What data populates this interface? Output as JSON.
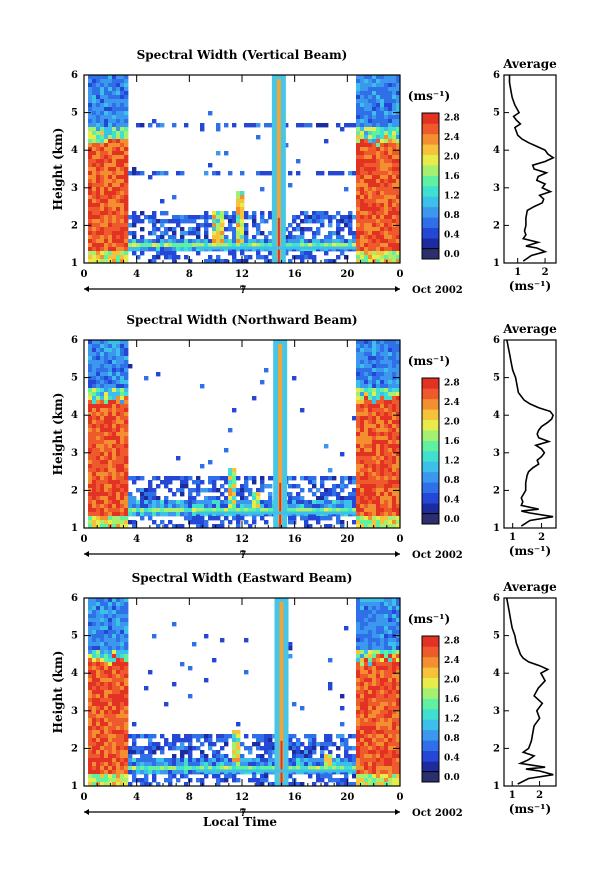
{
  "footer": {
    "local_time_label": "Local Time"
  },
  "chart_data": [
    {
      "type": "heatmap",
      "title": "Spectral Width (Vertical Beam)",
      "ylabel": "Height (km)",
      "xlabel": "",
      "x_ticks": [
        "0",
        "4",
        "8",
        "12",
        "16",
        "20",
        "0"
      ],
      "x_range": [
        0,
        24
      ],
      "y_ticks": [
        "1",
        "2",
        "3",
        "4",
        "5",
        "6"
      ],
      "ylim": [
        1,
        6
      ],
      "date_axis": {
        "day": "7",
        "month_year": "Oct 2002"
      },
      "colorbar": {
        "unit": "(ms⁻¹)",
        "ticks": [
          "0.0",
          "0.4",
          "0.8",
          "1.2",
          "1.6",
          "2.0",
          "2.4",
          "2.8"
        ],
        "range": [
          0,
          3.0
        ],
        "colors": [
          "#2b2f6e",
          "#1c2c9e",
          "#2547d6",
          "#2f6fe8",
          "#3c97ee",
          "#3cc0ea",
          "#40dfd0",
          "#5ff0a0",
          "#a5f070",
          "#e8ec4a",
          "#f5c23a",
          "#f38f30",
          "#ee5a2c",
          "#e23224"
        ]
      },
      "structure": {
        "boundary_layer_top_km": 4.3,
        "boundary_layer_start_h": 0.3,
        "morning_end_h": 3.4,
        "evening_start_h": 20.7,
        "spike_h": 14.8,
        "low_band_km": [
          1.3,
          1.65
        ],
        "cloud_layers_km": [
          4.7,
          3.4,
          2.2
        ],
        "convective_bursts": [
          {
            "x": 11.8,
            "top": 2.9
          },
          {
            "x": 10.2,
            "top": 2.4
          }
        ]
      },
      "average_panel": {
        "title": "Average",
        "xlabel": "(ms⁻¹)",
        "x_ticks": [
          "1",
          "2"
        ],
        "xlim": [
          0.5,
          2.4
        ],
        "y_ticks": [
          "1",
          "2",
          "3",
          "4",
          "5",
          "6"
        ],
        "ylim": [
          1,
          6
        ],
        "profile": {
          "height_km": [
            1.05,
            1.2,
            1.3,
            1.4,
            1.45,
            1.55,
            1.65,
            1.75,
            1.85,
            2.0,
            2.2,
            2.4,
            2.5,
            2.6,
            2.7,
            2.8,
            2.9,
            3.0,
            3.1,
            3.2,
            3.3,
            3.4,
            3.5,
            3.6,
            3.7,
            3.8,
            3.9,
            4.0,
            4.1,
            4.2,
            4.3,
            4.4,
            4.5,
            4.6,
            4.7,
            4.8,
            4.9,
            5.0,
            5.2,
            5.4,
            5.6,
            5.8,
            6.0
          ],
          "width_ms": [
            1.2,
            1.5,
            2.0,
            1.7,
            1.3,
            1.75,
            1.2,
            1.3,
            1.25,
            1.3,
            1.3,
            1.35,
            1.6,
            1.9,
            1.95,
            1.8,
            2.2,
            1.9,
            2.0,
            1.7,
            1.75,
            2.05,
            1.6,
            1.55,
            2.0,
            2.3,
            2.1,
            2.0,
            1.7,
            1.4,
            1.15,
            1.0,
            0.95,
            0.9,
            1.1,
            0.95,
            0.85,
            1.05,
            0.9,
            0.8,
            0.75,
            0.7,
            0.7
          ]
        }
      }
    },
    {
      "type": "heatmap",
      "title": "Spectral Width (Northward Beam)",
      "ylabel": "Height (km)",
      "xlabel": "",
      "x_ticks": [
        "0",
        "4",
        "8",
        "12",
        "16",
        "20",
        "0"
      ],
      "x_range": [
        0,
        24
      ],
      "y_ticks": [
        "1",
        "2",
        "3",
        "4",
        "5",
        "6"
      ],
      "ylim": [
        1,
        6
      ],
      "date_axis": {
        "day": "7",
        "month_year": "Oct 2002"
      },
      "colorbar": {
        "unit": "(ms⁻¹)",
        "ticks": [
          "0.0",
          "0.4",
          "0.8",
          "1.2",
          "1.6",
          "2.0",
          "2.4",
          "2.8"
        ],
        "range": [
          0,
          3.0
        ],
        "colors": [
          "#2b2f6e",
          "#1c2c9e",
          "#2547d6",
          "#2f6fe8",
          "#3c97ee",
          "#3cc0ea",
          "#40dfd0",
          "#5ff0a0",
          "#a5f070",
          "#e8ec4a",
          "#f5c23a",
          "#f38f30",
          "#ee5a2c",
          "#e23224"
        ]
      },
      "structure": {
        "boundary_layer_top_km": 4.45,
        "boundary_layer_start_h": 0.3,
        "morning_end_h": 3.4,
        "evening_start_h": 20.7,
        "spike_h": 14.9,
        "low_band_km": [
          1.3,
          1.7
        ],
        "cloud_layers_km": [
          2.3
        ],
        "convective_bursts": [
          {
            "x": 11.3,
            "top": 2.6
          },
          {
            "x": 13.0,
            "top": 2.0
          }
        ]
      },
      "average_panel": {
        "title": "Average",
        "xlabel": "(ms⁻¹)",
        "x_ticks": [
          "1",
          "2"
        ],
        "xlim": [
          0.7,
          2.5
        ],
        "y_ticks": [
          "1",
          "2",
          "3",
          "4",
          "5",
          "6"
        ],
        "ylim": [
          1,
          6
        ],
        "profile": {
          "height_km": [
            1.05,
            1.2,
            1.3,
            1.4,
            1.45,
            1.5,
            1.6,
            1.7,
            1.8,
            2.0,
            2.2,
            2.4,
            2.5,
            2.6,
            2.7,
            2.8,
            2.9,
            3.0,
            3.1,
            3.2,
            3.3,
            3.4,
            3.5,
            3.6,
            3.7,
            3.8,
            3.9,
            4.0,
            4.1,
            4.2,
            4.3,
            4.4,
            4.5,
            4.6,
            4.8,
            5.0,
            5.2,
            5.4,
            5.6,
            5.8,
            6.0
          ],
          "width_ms": [
            1.3,
            1.6,
            2.4,
            1.6,
            1.3,
            1.9,
            1.3,
            1.35,
            1.3,
            1.45,
            1.45,
            1.5,
            1.55,
            1.7,
            1.9,
            1.85,
            2.0,
            2.1,
            2.0,
            1.8,
            2.25,
            1.9,
            1.85,
            1.9,
            2.0,
            2.2,
            2.35,
            2.4,
            2.3,
            1.9,
            1.6,
            1.4,
            1.3,
            1.2,
            1.15,
            1.1,
            1.0,
            0.95,
            0.9,
            0.85,
            0.8
          ]
        }
      }
    },
    {
      "type": "heatmap",
      "title": "Spectral Width (Eastward Beam)",
      "ylabel": "Height (km)",
      "xlabel": "Local Time",
      "x_ticks": [
        "0",
        "4",
        "8",
        "12",
        "16",
        "20",
        "0"
      ],
      "x_range": [
        0,
        24
      ],
      "y_ticks": [
        "1",
        "2",
        "3",
        "4",
        "5",
        "6"
      ],
      "ylim": [
        1,
        6
      ],
      "date_axis": {
        "day": "7",
        "month_year": "Oct 2002"
      },
      "colorbar": {
        "unit": "(ms⁻¹)",
        "ticks": [
          "0.0",
          "0.4",
          "0.8",
          "1.2",
          "1.6",
          "2.0",
          "2.4",
          "2.8"
        ],
        "range": [
          0,
          3.0
        ],
        "colors": [
          "#2b2f6e",
          "#1c2c9e",
          "#2547d6",
          "#2f6fe8",
          "#3c97ee",
          "#3cc0ea",
          "#40dfd0",
          "#5ff0a0",
          "#a5f070",
          "#e8ec4a",
          "#f5c23a",
          "#f38f30",
          "#ee5a2c",
          "#e23224"
        ]
      },
      "structure": {
        "boundary_layer_top_km": 4.4,
        "boundary_layer_start_h": 0.3,
        "morning_end_h": 3.4,
        "evening_start_h": 20.7,
        "spike_h": 15.0,
        "low_band_km": [
          1.3,
          1.75
        ],
        "cloud_layers_km": [
          2.3
        ],
        "convective_bursts": [
          {
            "x": 11.5,
            "top": 2.5
          },
          {
            "x": 18.5,
            "top": 1.9
          }
        ]
      },
      "average_panel": {
        "title": "Average",
        "xlabel": "(ms⁻¹)",
        "x_ticks": [
          "1",
          "2"
        ],
        "xlim": [
          0.7,
          2.6
        ],
        "y_ticks": [
          "1",
          "2",
          "3",
          "4",
          "5",
          "6"
        ],
        "ylim": [
          1,
          6
        ],
        "profile": {
          "height_km": [
            1.05,
            1.2,
            1.3,
            1.4,
            1.45,
            1.5,
            1.6,
            1.7,
            1.8,
            1.9,
            2.0,
            2.2,
            2.4,
            2.6,
            2.8,
            3.0,
            3.2,
            3.4,
            3.6,
            3.8,
            4.0,
            4.1,
            4.2,
            4.3,
            4.4,
            4.5,
            4.6,
            4.8,
            5.0,
            5.2,
            5.4,
            5.6,
            5.8,
            6.0
          ],
          "width_ms": [
            1.2,
            1.6,
            2.5,
            2.0,
            1.5,
            2.2,
            1.3,
            1.6,
            1.8,
            1.4,
            1.6,
            1.7,
            1.75,
            1.8,
            2.0,
            1.9,
            2.1,
            1.8,
            1.95,
            2.2,
            2.05,
            2.3,
            2.0,
            1.6,
            1.4,
            1.3,
            1.25,
            1.15,
            1.1,
            1.0,
            0.95,
            0.9,
            0.85,
            0.8
          ]
        }
      }
    }
  ]
}
